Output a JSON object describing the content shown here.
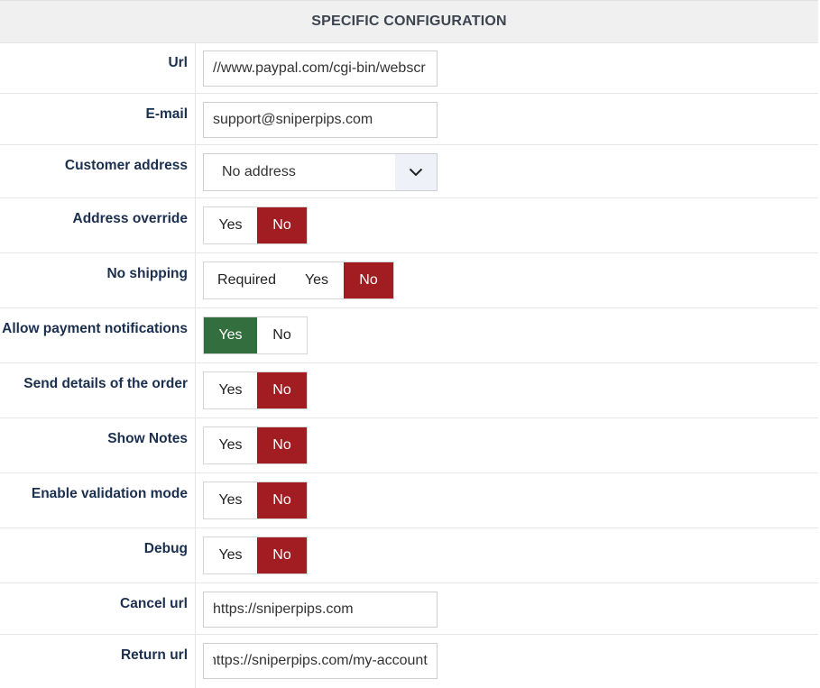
{
  "header": {
    "title": "SPECIFIC CONFIGURATION"
  },
  "fields": {
    "url": {
      "label": "Url",
      "value": "//www.paypal.com/cgi-bin/webscr"
    },
    "email": {
      "label": "E-mail",
      "value": "support@sniperpips.com"
    },
    "customer_address": {
      "label": "Customer address",
      "selected": "No address"
    },
    "address_override": {
      "label": "Address override",
      "yes": "Yes",
      "no": "No",
      "selected": "No"
    },
    "no_shipping": {
      "label": "No shipping",
      "required": "Required",
      "yes": "Yes",
      "no": "No",
      "selected": "No"
    },
    "allow_payment_notifications": {
      "label": "Allow payment notifications",
      "yes": "Yes",
      "no": "No",
      "selected": "Yes"
    },
    "send_details": {
      "label": "Send details of the order",
      "yes": "Yes",
      "no": "No",
      "selected": "No"
    },
    "show_notes": {
      "label": "Show Notes",
      "yes": "Yes",
      "no": "No",
      "selected": "No"
    },
    "validation_mode": {
      "label": "Enable validation mode",
      "yes": "Yes",
      "no": "No",
      "selected": "No"
    },
    "debug": {
      "label": "Debug",
      "yes": "Yes",
      "no": "No",
      "selected": "No"
    },
    "cancel_url": {
      "label": "Cancel url",
      "value": "https://sniperpips.com"
    },
    "return_url": {
      "label": "Return url",
      "value": "https://sniperpips.com/my-account"
    }
  },
  "colors": {
    "selected_no": "#a11d21",
    "selected_yes": "#336e3f"
  }
}
